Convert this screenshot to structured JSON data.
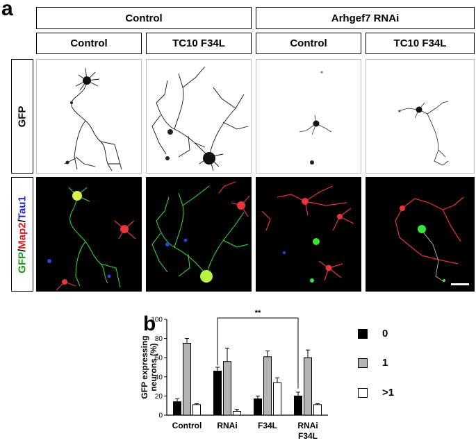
{
  "panel_a_letter": "a",
  "panel_b_letter": "b",
  "group_headers": [
    "Control",
    "Arhgef7 RNAi"
  ],
  "column_headers": [
    "Control",
    "TC10 F34L",
    "Control",
    "TC10 F34L"
  ],
  "row_labels": {
    "gfp": "GFP",
    "merge": [
      {
        "text": "GFP",
        "color": "#1a9a1a"
      },
      {
        "text": "/",
        "color": "#000000"
      },
      {
        "text": "Map2",
        "color": "#e01818"
      },
      {
        "text": "/",
        "color": "#000000"
      },
      {
        "text": "Tau1",
        "color": "#1a2ad0"
      }
    ]
  },
  "colors": {
    "gfp_channel": "#37e637",
    "map2_channel": "#e8343c",
    "tau1_channel": "#2b45d8",
    "bar_0": "#000000",
    "bar_1": "#b4b4b4",
    "bar_gt1": "#ffffff"
  },
  "significance": "**",
  "chart_data": {
    "type": "bar",
    "ylabel": "GFP expressing neurons (%)",
    "ylim": [
      0,
      100
    ],
    "yticks": [
      0,
      20,
      40,
      60,
      80,
      100
    ],
    "categories": [
      "Control",
      "RNAi",
      "F34L",
      "RNAi\nF34L"
    ],
    "series": [
      {
        "name": "0",
        "color": "#000000",
        "values": [
          14,
          46,
          17,
          20
        ],
        "errors": [
          3,
          4,
          3,
          4
        ]
      },
      {
        "name": "1",
        "color": "#b4b4b4",
        "values": [
          75,
          56,
          61,
          60
        ],
        "errors": [
          5,
          14,
          6,
          8
        ]
      },
      {
        "name": ">1",
        "color": "#ffffff",
        "values": [
          11,
          4,
          34,
          11
        ],
        "errors": [
          1,
          2,
          5,
          1
        ]
      }
    ],
    "significance_bracket": {
      "from": "RNAi",
      "to": "RNAi\nF34L",
      "label": "**"
    }
  }
}
